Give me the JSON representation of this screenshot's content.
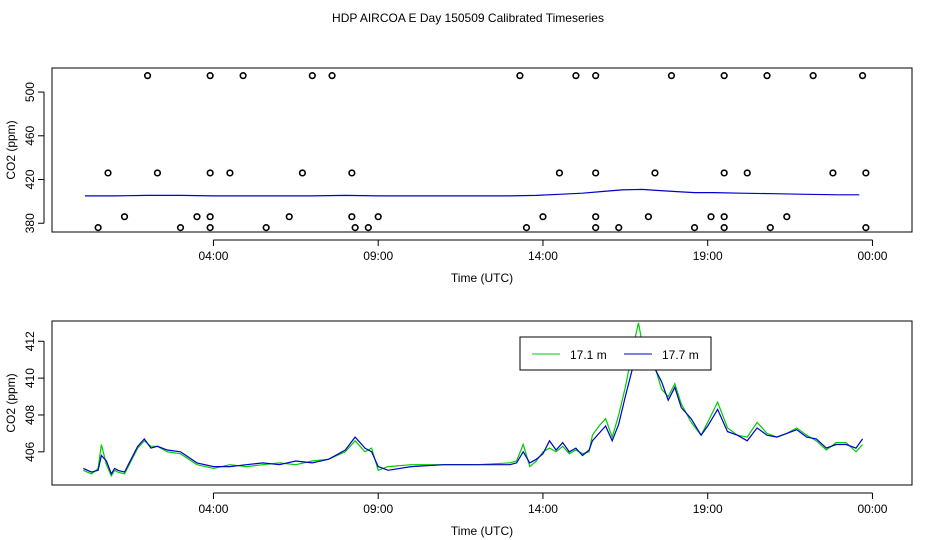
{
  "title": "HDP AIRCOA E  Day 150509  Calibrated Timeseries",
  "colors": {
    "green": "#00cc00",
    "blue": "#0000cc",
    "axis": "#000000"
  },
  "chart_data": [
    {
      "type": "scatter",
      "xlabel": "Time (UTC)",
      "ylabel": "CO2 (ppm)",
      "xlim": [
        -0.9,
        25.2
      ],
      "ylim": [
        372,
        522
      ],
      "xticks": [
        4,
        9,
        14,
        19,
        24
      ],
      "xtick_labels": [
        "04:00",
        "09:00",
        "14:00",
        "19:00",
        "00:00"
      ],
      "yticks": [
        380,
        420,
        460,
        500
      ],
      "yticks_labels": [
        "380",
        "420",
        "460",
        "500"
      ],
      "series": [
        {
          "name": "",
          "type": "line",
          "color": "#0000cc",
          "x": [
            0.1,
            1,
            2,
            3,
            4,
            5,
            6,
            7,
            8,
            9,
            10,
            11,
            12,
            13,
            13.8,
            14.5,
            15.2,
            15.8,
            16.4,
            17,
            17.5,
            18,
            18.6,
            19.2,
            20,
            21,
            22,
            23,
            23.6
          ],
          "y": [
            405,
            405,
            405.5,
            405.5,
            405,
            405,
            405,
            405,
            405.5,
            405,
            405,
            405,
            405,
            405,
            405.5,
            406.5,
            407.5,
            409,
            410.5,
            411,
            410,
            409,
            408,
            408,
            407.5,
            407,
            406.5,
            406,
            406
          ]
        },
        {
          "name": "",
          "type": "points",
          "x": [
            0.8,
            2.3,
            3.9,
            4.5,
            6.7,
            8.2,
            14.5,
            15.6,
            17.4,
            19.5,
            20.2,
            22.8,
            23.8,
            2.0,
            3.9,
            4.9,
            7.0,
            7.6,
            13.3,
            15.0,
            15.6,
            17.9,
            19.5,
            20.8,
            22.2,
            23.7,
            1.3,
            3.5,
            3.9,
            6.3,
            8.2,
            9.0,
            14.0,
            15.6,
            17.2,
            19.1,
            19.5,
            21.4,
            0.5,
            3.0,
            3.9,
            5.6,
            8.3,
            8.7,
            13.5,
            15.6,
            16.3,
            18.6,
            19.5,
            20.9,
            23.8
          ]
        }
      ],
      "points_y": [
        426,
        426,
        426,
        426,
        426,
        426,
        426,
        426,
        426,
        426,
        426,
        426,
        426,
        515,
        515,
        515,
        515,
        515,
        515,
        515,
        515,
        515,
        515,
        515,
        515,
        515,
        386,
        386,
        386,
        386,
        386,
        386,
        386,
        386,
        386,
        386,
        386,
        386,
        376,
        376,
        376,
        376,
        376,
        376,
        376,
        376,
        376,
        376,
        376,
        376,
        376
      ]
    },
    {
      "type": "line",
      "xlabel": "Time (UTC)",
      "ylabel": "CO2 (ppm)",
      "xlim": [
        -0.9,
        25.2
      ],
      "ylim": [
        404.2,
        413.1
      ],
      "xticks": [
        4,
        9,
        14,
        19,
        24
      ],
      "xtick_labels": [
        "04:00",
        "09:00",
        "14:00",
        "19:00",
        "00:00"
      ],
      "yticks": [
        406,
        408,
        410,
        412
      ],
      "yticks_labels": [
        "406",
        "408",
        "410",
        "412"
      ],
      "legend_placement": "top-right",
      "series": [
        {
          "name": "17.1 m",
          "color": "#00cc00",
          "x": [
            0.05,
            0.3,
            0.5,
            0.6,
            0.75,
            0.9,
            1.0,
            1.1,
            1.3,
            1.5,
            1.7,
            1.9,
            2.1,
            2.3,
            2.6,
            3.0,
            3.5,
            4.0,
            4.5,
            5.0,
            5.5,
            6.0,
            6.5,
            7.0,
            7.5,
            8.0,
            8.3,
            8.6,
            8.8,
            9.0,
            9.3,
            10,
            11,
            12,
            13,
            13.2,
            13.4,
            13.6,
            13.8,
            14.0,
            14.2,
            14.4,
            14.6,
            14.8,
            15.0,
            15.2,
            15.4,
            15.5,
            15.7,
            15.9,
            16.1,
            16.3,
            16.5,
            16.7,
            16.8,
            16.9,
            17.0,
            17.1,
            17.2,
            17.3,
            17.4,
            17.6,
            17.8,
            18.0,
            18.2,
            18.5,
            18.8,
            19.0,
            19.3,
            19.6,
            19.9,
            20.2,
            20.5,
            20.8,
            21.1,
            21.4,
            21.7,
            22.0,
            22.3,
            22.6,
            22.9,
            23.2,
            23.5,
            23.7
          ],
          "y": [
            405.0,
            404.8,
            405.1,
            406.4,
            405.3,
            404.7,
            405.0,
            404.9,
            404.8,
            405.5,
            406.2,
            406.6,
            406.3,
            406.3,
            406.0,
            405.9,
            405.3,
            405.1,
            405.3,
            405.2,
            405.3,
            405.4,
            405.3,
            405.5,
            405.6,
            406.0,
            406.6,
            406.0,
            406.2,
            405.0,
            405.2,
            405.3,
            405.3,
            405.3,
            405.4,
            405.5,
            406.4,
            405.2,
            405.5,
            406.0,
            406.2,
            406.0,
            406.3,
            405.9,
            406.1,
            405.9,
            406.0,
            406.9,
            407.4,
            407.8,
            406.8,
            408.0,
            409.5,
            411.3,
            412.2,
            413.0,
            412.0,
            410.7,
            411.6,
            411.2,
            410.6,
            409.4,
            409.0,
            409.7,
            408.6,
            407.6,
            406.9,
            407.6,
            408.7,
            407.3,
            406.9,
            406.8,
            407.6,
            407.0,
            406.8,
            407.0,
            407.3,
            406.9,
            406.6,
            406.1,
            406.5,
            406.5,
            406.0,
            406.4
          ]
        },
        {
          "name": "17.7 m",
          "color": "#0000cc",
          "x": [
            0.05,
            0.3,
            0.5,
            0.6,
            0.75,
            0.9,
            1.0,
            1.1,
            1.3,
            1.5,
            1.7,
            1.9,
            2.1,
            2.3,
            2.6,
            3.0,
            3.5,
            4.0,
            4.5,
            5.0,
            5.5,
            6.0,
            6.5,
            7.0,
            7.5,
            8.0,
            8.3,
            8.6,
            8.8,
            9.0,
            9.3,
            10,
            11,
            12,
            13,
            13.2,
            13.4,
            13.6,
            13.8,
            14.0,
            14.2,
            14.4,
            14.6,
            14.8,
            15.0,
            15.2,
            15.4,
            15.5,
            15.7,
            15.9,
            16.1,
            16.3,
            16.5,
            16.7,
            16.8,
            16.9,
            17.0,
            17.1,
            17.2,
            17.3,
            17.4,
            17.6,
            17.8,
            18.0,
            18.2,
            18.5,
            18.8,
            19.0,
            19.3,
            19.6,
            19.9,
            20.2,
            20.5,
            20.8,
            21.1,
            21.4,
            21.7,
            22.0,
            22.3,
            22.6,
            22.9,
            23.2,
            23.5,
            23.7
          ],
          "y": [
            405.1,
            404.9,
            405.0,
            405.8,
            405.5,
            404.8,
            405.1,
            405.0,
            404.9,
            405.6,
            406.3,
            406.7,
            406.2,
            406.3,
            406.1,
            406.0,
            405.4,
            405.2,
            405.2,
            405.3,
            405.4,
            405.3,
            405.5,
            405.4,
            405.6,
            406.1,
            406.8,
            406.2,
            406.0,
            405.2,
            405.0,
            405.2,
            405.3,
            405.3,
            405.3,
            405.4,
            406.0,
            405.4,
            405.6,
            405.9,
            406.6,
            406.1,
            406.5,
            406.0,
            406.2,
            405.8,
            406.1,
            406.6,
            407.0,
            407.4,
            406.6,
            407.5,
            409.0,
            410.4,
            411.2,
            411.5,
            411.2,
            411.0,
            411.4,
            411.0,
            410.5,
            409.8,
            408.8,
            409.5,
            408.4,
            407.8,
            406.9,
            407.4,
            408.3,
            407.1,
            406.9,
            406.6,
            407.3,
            406.9,
            406.8,
            407.0,
            407.2,
            406.8,
            406.7,
            406.2,
            406.4,
            406.4,
            406.2,
            406.7
          ]
        }
      ]
    }
  ]
}
